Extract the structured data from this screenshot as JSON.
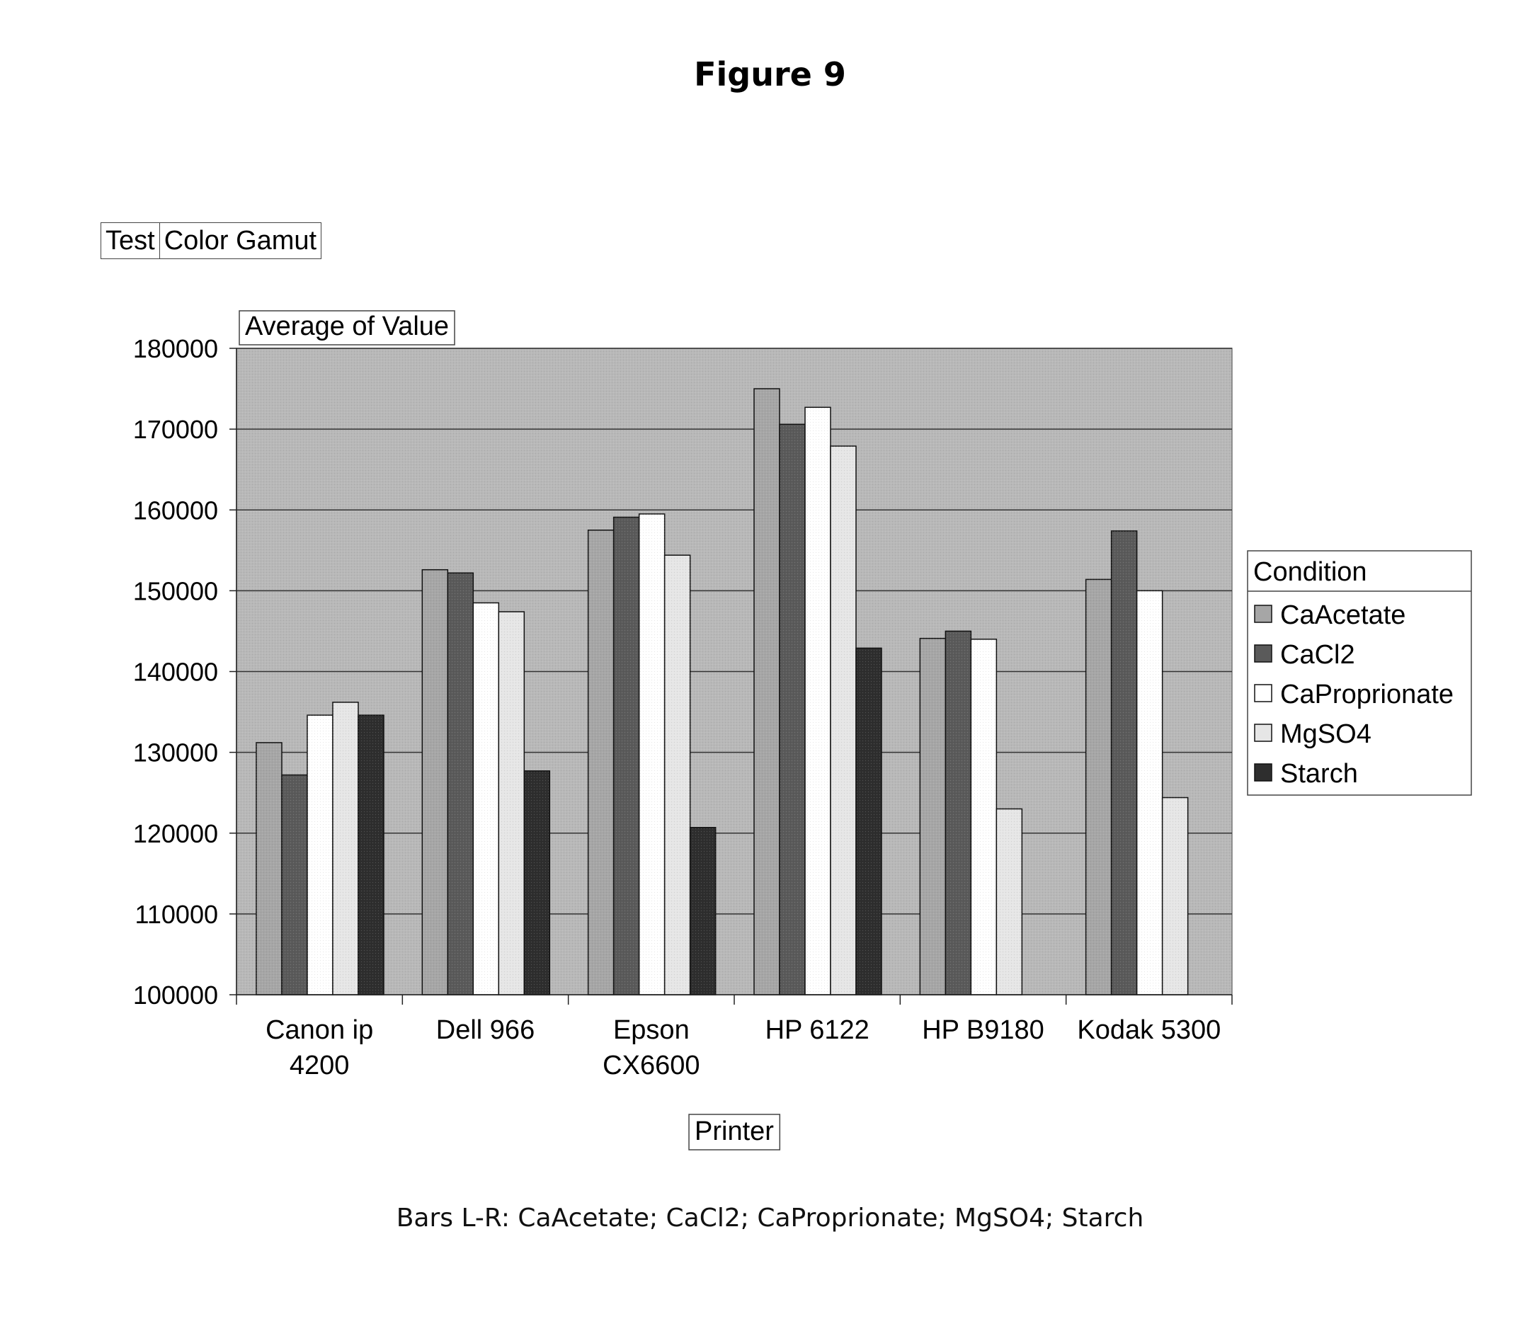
{
  "figure_title": "Figure 9",
  "filter": {
    "field": "Test",
    "value": "Color Gamut"
  },
  "caption": "Bars L-R: CaAcetate; CaCl2; CaProprionate; MgSO4; Starch",
  "colors": {
    "plot_bg": "#b8b8b8",
    "gridline": "#333333",
    "series": [
      "#a6a6a6",
      "#5a5a5a",
      "#ffffff",
      "#e6e6e6",
      "#2e2e2e"
    ]
  },
  "chart_data": {
    "type": "bar",
    "title": "Average of Value",
    "xlabel": "Printer",
    "ylabel": "Average of Value",
    "ylim": [
      100000,
      180000
    ],
    "yticks": [
      100000,
      110000,
      120000,
      130000,
      140000,
      150000,
      160000,
      170000,
      180000
    ],
    "grid": true,
    "legend_title": "Condition",
    "legend_position": "right",
    "categories": [
      [
        "Canon ip",
        "4200"
      ],
      [
        "Dell 966"
      ],
      [
        "Epson",
        "CX6600"
      ],
      [
        "HP 6122"
      ],
      [
        "HP B9180"
      ],
      [
        "Kodak 5300"
      ]
    ],
    "series": [
      {
        "name": "CaAcetate",
        "values": [
          131200,
          152600,
          157500,
          175000,
          144100,
          151400
        ]
      },
      {
        "name": "CaCl2",
        "values": [
          127200,
          152200,
          159100,
          170600,
          145000,
          157400
        ]
      },
      {
        "name": "CaProprionate",
        "values": [
          134600,
          148500,
          159500,
          172700,
          144000,
          150000
        ]
      },
      {
        "name": "MgSO4",
        "values": [
          136200,
          147400,
          154400,
          167900,
          123000,
          124400
        ]
      },
      {
        "name": "Starch",
        "values": [
          134600,
          127700,
          120700,
          142900,
          null,
          null
        ]
      }
    ]
  }
}
